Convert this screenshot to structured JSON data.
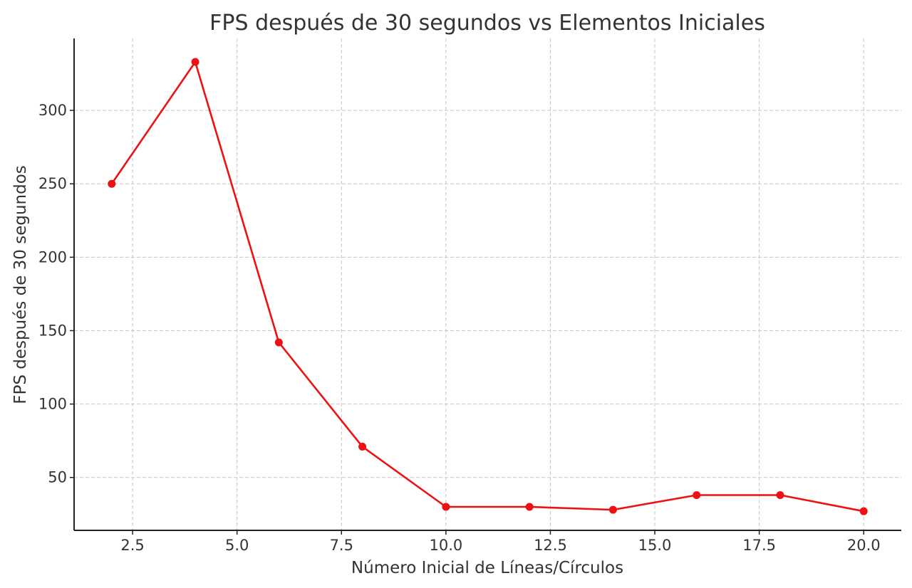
{
  "chart_data": {
    "type": "line",
    "title": "FPS después de 30 segundos vs Elementos Iniciales",
    "xlabel": "Número Inicial de Líneas/Círculos",
    "ylabel": "FPS después de 30 segundos",
    "xlim": [
      1.1,
      20.9
    ],
    "ylim": [
      14,
      349
    ],
    "grid": true,
    "x_ticks": [
      2.5,
      5.0,
      7.5,
      10.0,
      12.5,
      15.0,
      17.5,
      20.0
    ],
    "x_tick_labels": [
      "2.5",
      "5.0",
      "7.5",
      "10.0",
      "12.5",
      "15.0",
      "17.5",
      "20.0"
    ],
    "y_ticks": [
      50,
      100,
      150,
      200,
      250,
      300
    ],
    "y_tick_labels": [
      "50",
      "100",
      "150",
      "200",
      "250",
      "300"
    ],
    "series": [
      {
        "name": "FPS",
        "color": "#ee1111",
        "marker": "circle",
        "x": [
          2,
          4,
          6,
          8,
          10,
          12,
          14,
          16,
          18,
          20
        ],
        "y": [
          250,
          333,
          142,
          71,
          30,
          30,
          28,
          38,
          38,
          27
        ]
      }
    ]
  }
}
